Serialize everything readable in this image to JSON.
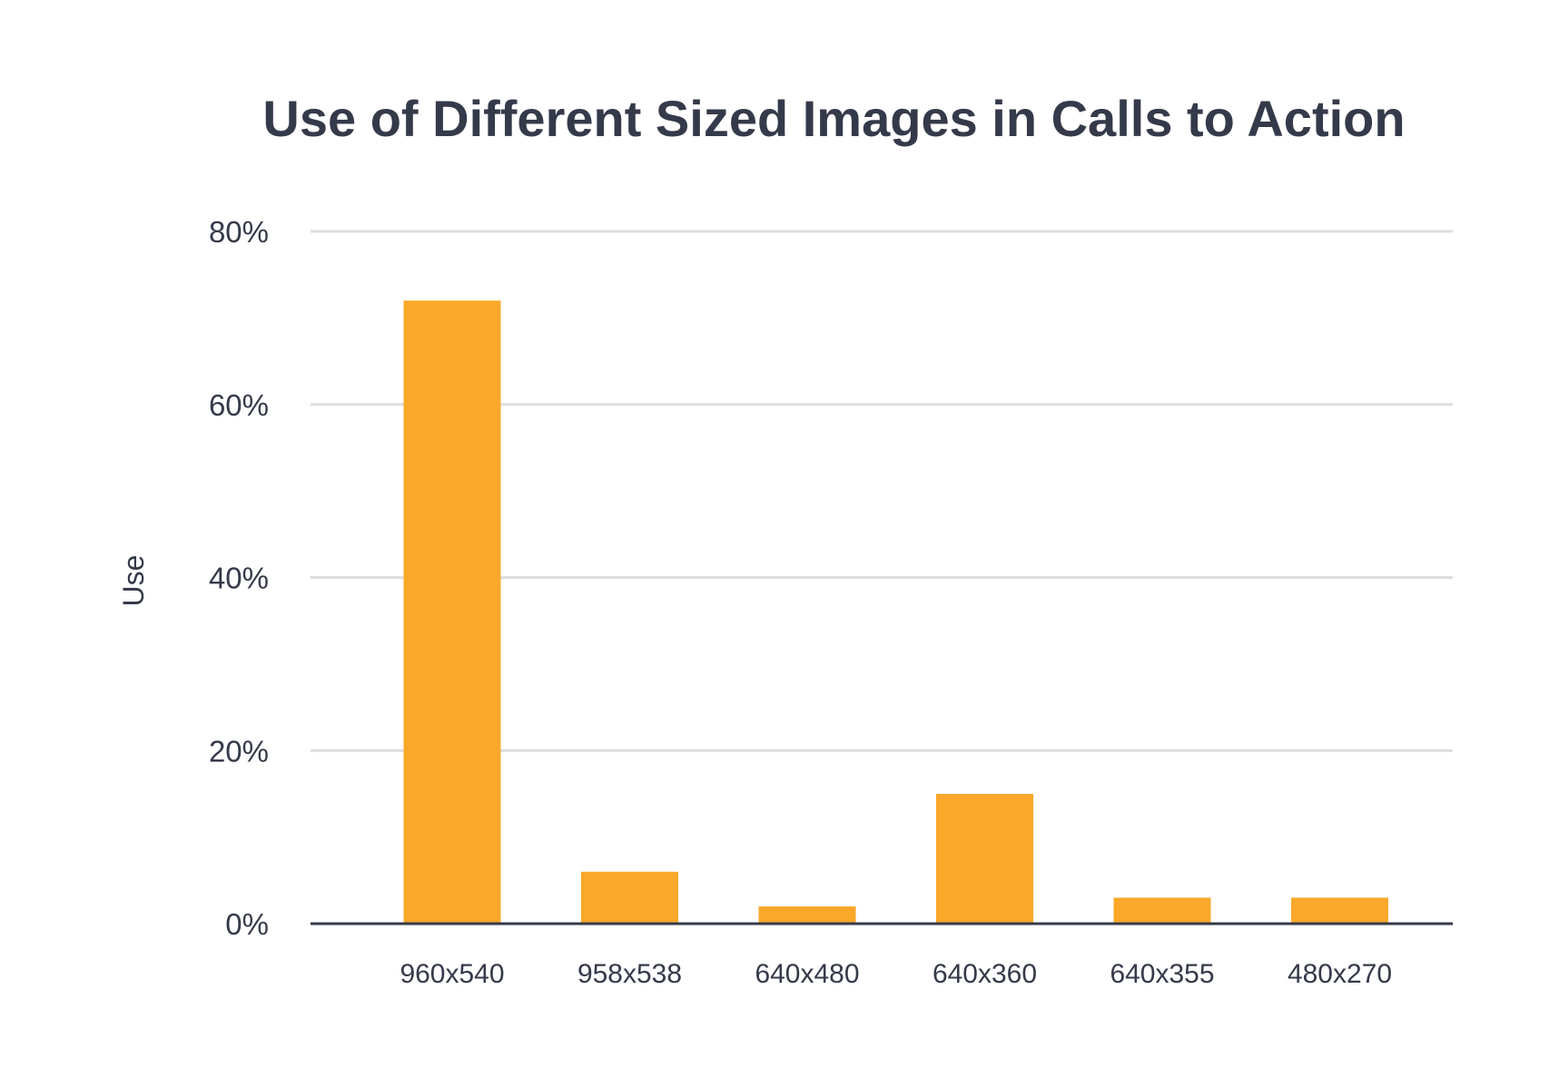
{
  "chart_data": {
    "type": "bar",
    "title": "Use of Different Sized Images in Calls to Action",
    "xlabel": "",
    "ylabel": "Use",
    "categories": [
      "960x540",
      "958x538",
      "640x480",
      "640x360",
      "640x355",
      "480x270"
    ],
    "values": [
      72,
      6,
      2,
      15,
      3,
      3
    ],
    "ylim": [
      0,
      80
    ],
    "yticks": [
      0,
      20,
      40,
      60,
      80
    ],
    "ytick_labels": [
      "0%",
      "20%",
      "40%",
      "60%",
      "80%"
    ],
    "grid": true,
    "legend": "none",
    "colors": {
      "bar": "#f9a82a",
      "grid": "#dcdde0",
      "axis": "#353a4a",
      "text": "#353a4a"
    }
  }
}
